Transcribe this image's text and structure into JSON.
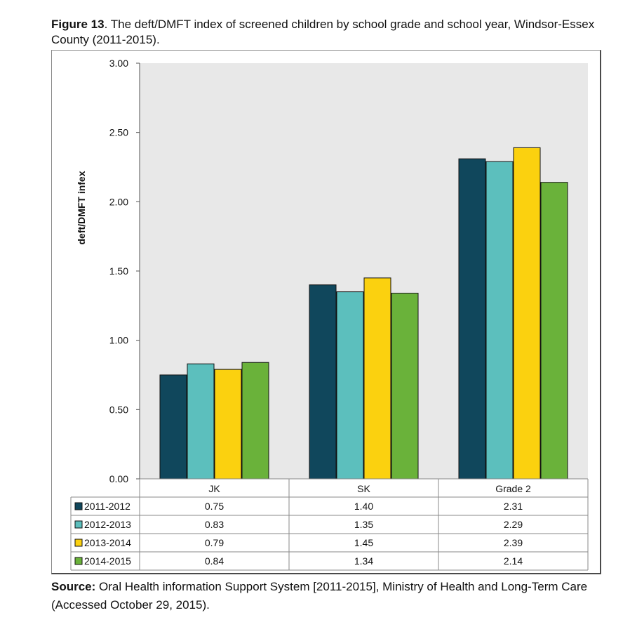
{
  "caption": {
    "figure_label": "Figure 13",
    "text": ". The deft/DMFT index of screened children by school grade and school year, Windsor-Essex County (2011-2015)."
  },
  "source": {
    "label": "Source:",
    "text": " Oral Health information Support System [2011-2015], Ministry of Health and Long-Term Care (Accessed October 29, 2015)."
  },
  "chart_data": {
    "type": "bar",
    "title": "",
    "xlabel": "",
    "ylabel": "deft/DMFT infex",
    "ylim": [
      0,
      3
    ],
    "yticks": [
      "0.00",
      "0.50",
      "1.00",
      "1.50",
      "2.00",
      "2.50",
      "3.00"
    ],
    "categories": [
      "JK",
      "SK",
      "Grade 2"
    ],
    "grid": false,
    "legend": "data-table",
    "series": [
      {
        "name": "2011-2012",
        "color": "#10475c",
        "values": [
          0.75,
          1.4,
          2.31
        ],
        "labels": [
          "0.75",
          "1.40",
          "2.31"
        ]
      },
      {
        "name": "2012-2013",
        "color": "#5cbfbd",
        "values": [
          0.83,
          1.35,
          2.29
        ],
        "labels": [
          "0.83",
          "1.35",
          "2.29"
        ]
      },
      {
        "name": "2013-2014",
        "color": "#fbd10f",
        "values": [
          0.79,
          1.45,
          2.39
        ],
        "labels": [
          "0.79",
          "1.45",
          "2.39"
        ]
      },
      {
        "name": "2014-2015",
        "color": "#6ab23a",
        "values": [
          0.84,
          1.34,
          2.14
        ],
        "labels": [
          "0.84",
          "1.34",
          "2.14"
        ]
      }
    ],
    "plot_background": "#e8e8e8"
  }
}
